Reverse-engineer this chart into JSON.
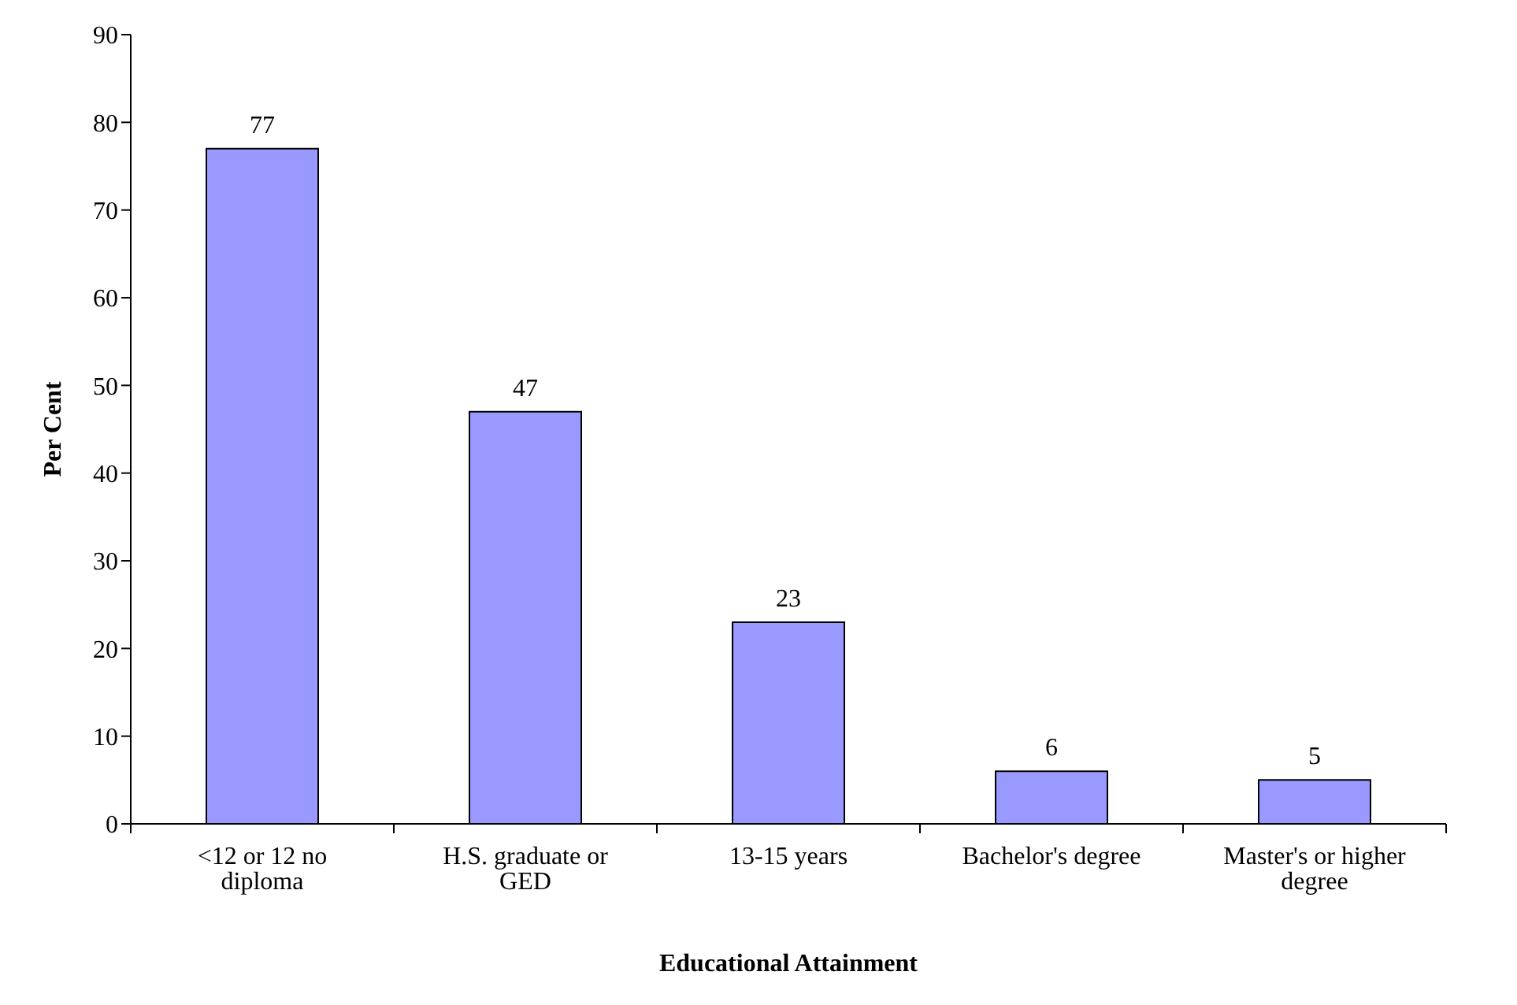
{
  "chart_data": {
    "type": "bar",
    "xlabel": "Educational Attainment",
    "ylabel": "Per Cent",
    "categories": [
      "<12 or 12 no diploma",
      "H.S. graduate or GED",
      "13-15 years",
      "Bachelor's degree",
      "Master's or higher degree"
    ],
    "values": [
      77,
      47,
      23,
      6,
      5
    ],
    "color": "#9999ff",
    "ylim": [
      0,
      90
    ],
    "yticks": [
      0,
      10,
      20,
      30,
      40,
      50,
      60,
      70,
      80,
      90
    ],
    "grid": false,
    "data_labels": true
  }
}
